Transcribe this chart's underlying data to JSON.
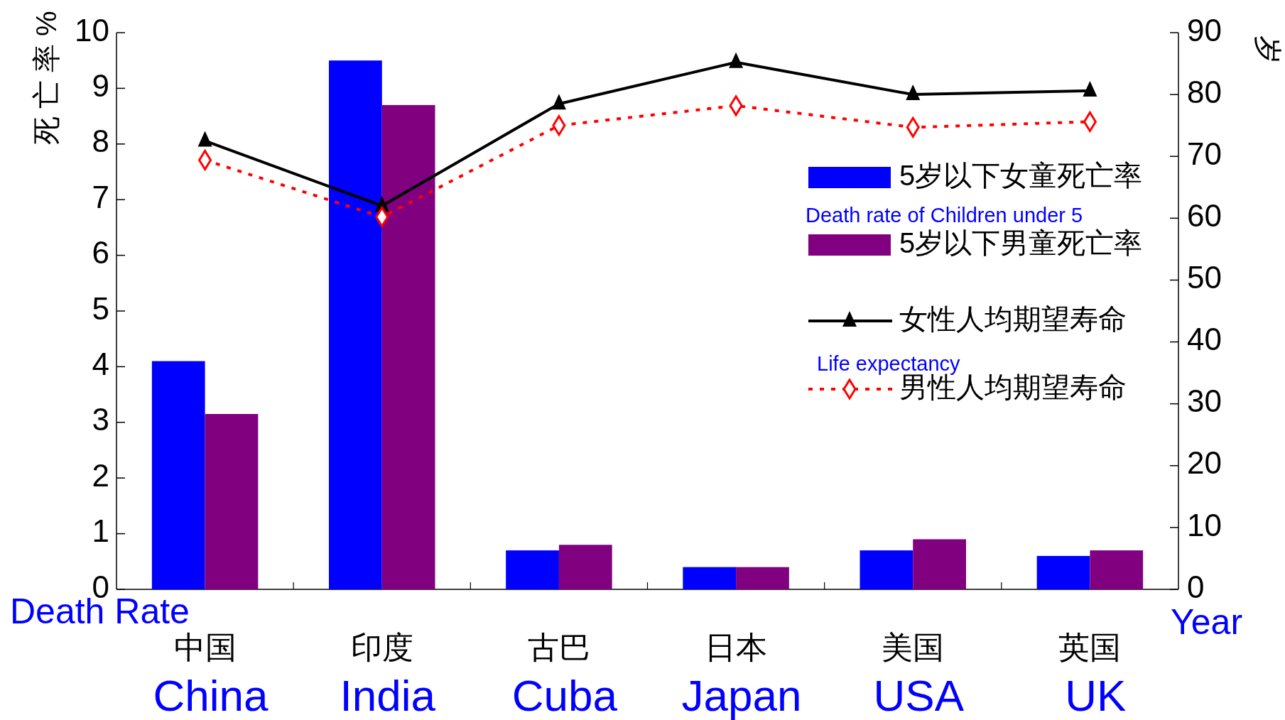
{
  "chart_data": {
    "type": "bar",
    "categories": [
      "中国",
      "印度",
      "古巴",
      "日本",
      "美国",
      "英国"
    ],
    "ylabel": "死 亡 率 %",
    "y2label": "岁",
    "ylim": [
      0,
      10
    ],
    "yticks": [
      0,
      1,
      2,
      3,
      4,
      5,
      6,
      7,
      8,
      9,
      10
    ],
    "y2lim": [
      0,
      90
    ],
    "y2ticks": [
      0,
      10,
      20,
      30,
      40,
      50,
      60,
      70,
      80,
      90
    ],
    "legend": "right",
    "series": [
      {
        "name": "5岁以下女童死亡率",
        "color": "#0000ff",
        "values": [
          4.1,
          9.5,
          0.7,
          0.4,
          0.7,
          0.6
        ]
      },
      {
        "name": "5岁以下男童死亡率",
        "color": "#800080",
        "values": [
          3.15,
          8.7,
          0.8,
          0.4,
          0.9,
          0.7
        ]
      },
      {
        "name": "女性人均期望寿命",
        "type": "line",
        "axis": "y2",
        "color": "#000000",
        "marker": "triangle",
        "line_style": "solid",
        "values": [
          72.5,
          62,
          78.5,
          85.2,
          80,
          80.6
        ]
      },
      {
        "name": "男性人均期望寿命",
        "type": "line",
        "axis": "y2",
        "color": "#ff0000",
        "marker": "diamond",
        "line_style": "dotted",
        "values": [
          69.4,
          60.2,
          75,
          78.2,
          74.7,
          75.6
        ]
      }
    ],
    "annotations": [
      "Death rate of Children under 5",
      "Life expectancy",
      "Death Rate",
      "Year",
      "China",
      "India",
      "Cuba",
      "Japan",
      "USA",
      "UK"
    ]
  }
}
